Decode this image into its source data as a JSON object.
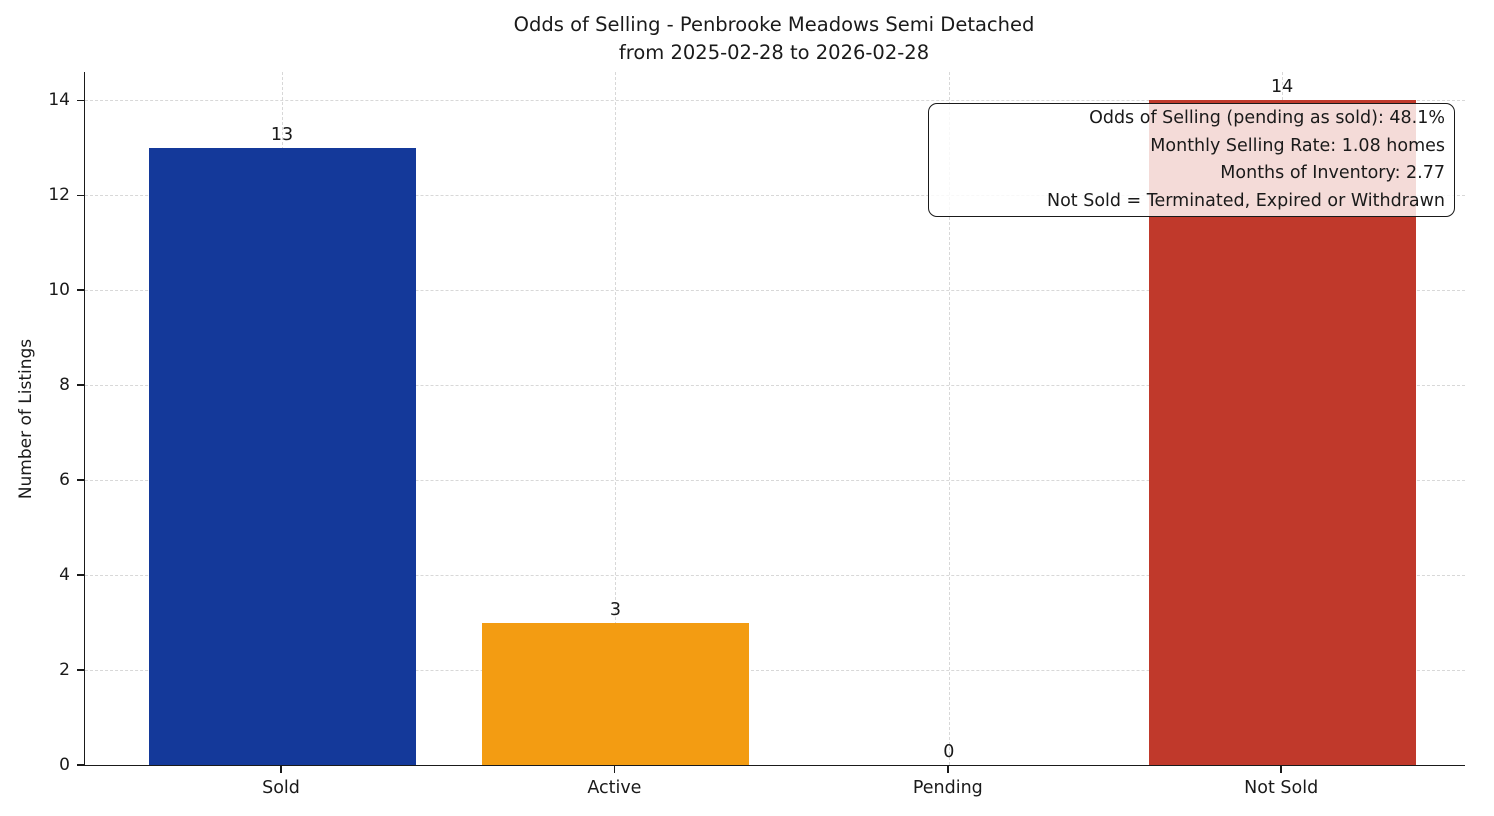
{
  "chart_data": {
    "type": "bar",
    "title": "Odds of Selling - Penbrooke Meadows Semi Detached",
    "subtitle": "from 2025-02-28 to 2026-02-28",
    "categories": [
      "Sold",
      "Active",
      "Pending",
      "Not Sold"
    ],
    "values": [
      13,
      3,
      0,
      14
    ],
    "bar_colors": [
      "#14399a",
      "#f39c12",
      "#808080",
      "#c0392b"
    ],
    "xlabel": "",
    "ylabel": "Number of Listings",
    "ylim": [
      0,
      14.6
    ],
    "yticks": [
      0,
      2,
      4,
      6,
      8,
      10,
      12,
      14
    ],
    "grid": "dashed, both axes",
    "legend": "none",
    "annotation": {
      "position": "top-right",
      "lines": [
        "Odds of Selling (pending as sold): 48.1%",
        "Monthly Selling Rate: 1.08 homes",
        "Months of Inventory: 2.77",
        "Not Sold = Terminated, Expired or Withdrawn"
      ]
    },
    "colors": {
      "text": "#1a1a1a",
      "grid": "#d8d8d8",
      "spine": "#1a1a1a",
      "annotation_background": "rgba(255,255,255,0.82)"
    }
  }
}
